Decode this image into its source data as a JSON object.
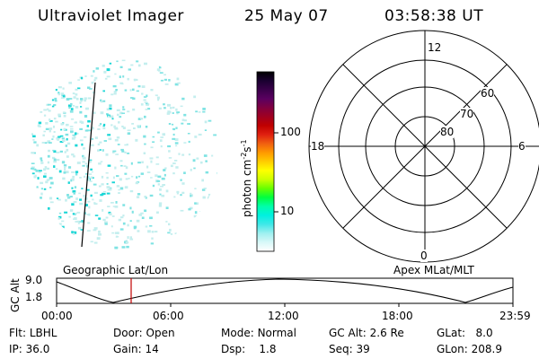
{
  "header": {
    "instrument": "Ultraviolet Imager",
    "date": "25 May 07",
    "time": "03:58:38 UT"
  },
  "colorbar": {
    "unit_label": "photon cm",
    "unit_exp1": "-2",
    "unit_s": "s",
    "unit_exp2": "-1",
    "ticks": [
      "100",
      "10"
    ],
    "colors": [
      "#000000",
      "#1a0030",
      "#3a004a",
      "#5a0060",
      "#800040",
      "#a00020",
      "#c00000",
      "#e02010",
      "#f06010",
      "#ff9900",
      "#ffcc00",
      "#ffff00",
      "#ccff00",
      "#66ff00",
      "#00ff40",
      "#00ffaa",
      "#00f0e0",
      "#40e8e8",
      "#9ff0f0",
      "#d8f8f8",
      "#ffffff"
    ]
  },
  "polar": {
    "labels": {
      "top": "12",
      "left": "18",
      "right": "6",
      "bottom": "0"
    },
    "ring_labels": [
      "60",
      "70",
      "80"
    ]
  },
  "timeline": {
    "left_title": "Geographic Lat/Lon",
    "right_title": "Apex MLat/MLT",
    "axis_title": "GC Alt",
    "y_ticks": [
      "9.0",
      "1.8"
    ],
    "x_ticks": [
      "00:00",
      "06:00",
      "12:00",
      "18:00",
      "23:59"
    ]
  },
  "info": {
    "row1": [
      {
        "k": "Flt:",
        "v": "LBHL"
      },
      {
        "k": "Door:",
        "v": "Open"
      },
      {
        "k": "Mode:",
        "v": "Normal"
      },
      {
        "k": "GC Alt:",
        "v": "2.6 Re"
      },
      {
        "k": "GLat:",
        "v": "8.0"
      }
    ],
    "row2": [
      {
        "k": "IP:",
        "v": "36.0"
      },
      {
        "k": "Gain:",
        "v": "14"
      },
      {
        "k": "Dsp:",
        "v": "1.8"
      },
      {
        "k": "Seq:",
        "v": "39"
      },
      {
        "k": "GLon:",
        "v": "208.9"
      }
    ]
  }
}
